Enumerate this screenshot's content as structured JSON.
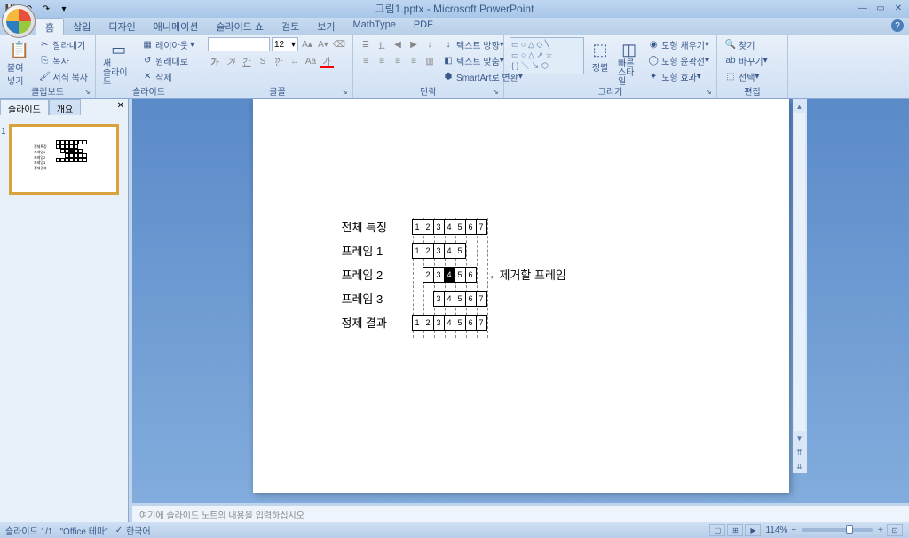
{
  "title": "그림1.pptx - Microsoft PowerPoint",
  "qat": {
    "save": "💾",
    "undo": "↶",
    "redo": "↷",
    "more": "▾"
  },
  "tabs": [
    "홈",
    "삽입",
    "디자인",
    "애니메이션",
    "슬라이드 쇼",
    "검토",
    "보기",
    "MathType",
    "PDF"
  ],
  "ribbon": {
    "clipboard": {
      "label": "클립보드",
      "paste": "붙여넣기",
      "cut": "잘라내기",
      "copy": "복사",
      "format": "서식 복사"
    },
    "slides": {
      "label": "슬라이드",
      "new": "새\n슬라이드",
      "layout": "레이아웃",
      "reset": "원래대로",
      "delete": "삭제"
    },
    "font": {
      "label": "글꼴",
      "size": "12"
    },
    "paragraph": {
      "label": "단락",
      "dir": "텍스트 방향",
      "align": "텍스트 맞춤",
      "smart": "SmartArt로 변환"
    },
    "drawing": {
      "label": "그리기",
      "arrange": "정렬",
      "quick": "빠른\n스타일",
      "fill": "도형 채우기",
      "outline": "도형 윤곽선",
      "effects": "도형 효과"
    },
    "editing": {
      "label": "편집",
      "find": "찾기",
      "replace": "바꾸기",
      "select": "선택"
    }
  },
  "panel": {
    "tab1": "슬라이드",
    "tab2": "개요",
    "slide_num": "1"
  },
  "slide": {
    "rows": [
      {
        "label": "전체 특징",
        "offset": 0,
        "cells": [
          1,
          2,
          3,
          4,
          5,
          6,
          7
        ]
      },
      {
        "label": "프레임 1",
        "offset": 0,
        "cells": [
          1,
          2,
          3,
          4,
          5
        ],
        "trailing": 2
      },
      {
        "label": "프레임 2",
        "offset": 1,
        "cells": [
          2,
          3,
          4,
          5,
          6
        ],
        "black": 4,
        "leading": 1,
        "trailing": 1,
        "arrow": "제거할 프레임"
      },
      {
        "label": "프레임 3",
        "offset": 2,
        "cells": [
          3,
          4,
          5,
          6,
          7
        ],
        "leading": 2
      },
      {
        "label": "정제 결과",
        "offset": 0,
        "cells": [
          1,
          2,
          3,
          4,
          5,
          6,
          7
        ]
      }
    ]
  },
  "notes_placeholder": "여기에 슬라이드 노트의 내용을 입력하십시오",
  "status": {
    "slide": "슬라이드 1/1",
    "theme": "\"Office 테마\"",
    "lang": "한국어",
    "zoom": "114%"
  }
}
